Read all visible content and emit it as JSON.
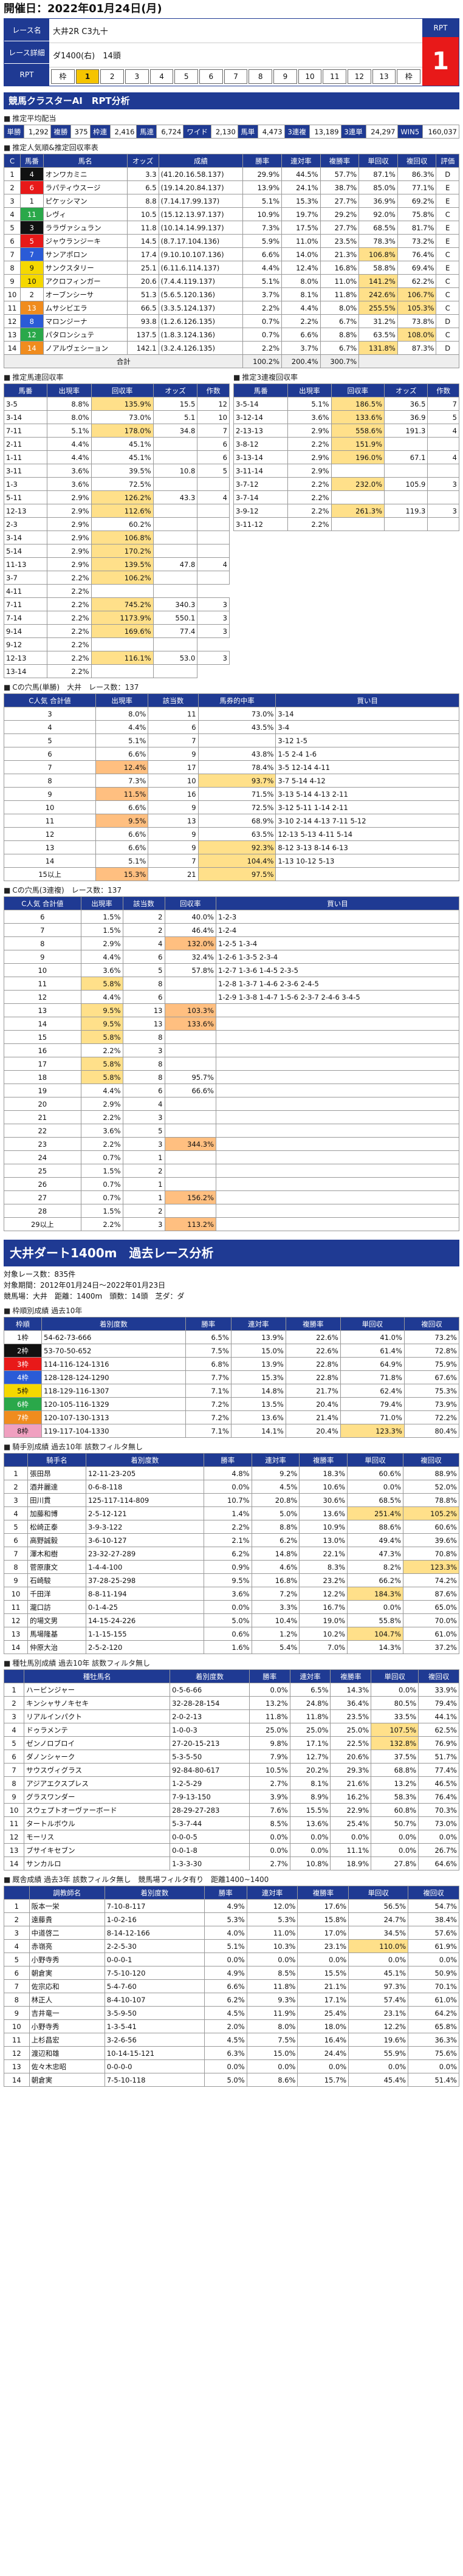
{
  "header": {
    "date": "開催日：2022年01月24日(月)"
  },
  "race": {
    "label_name": "レース名",
    "label_detail": "レース詳細",
    "label_rpt": "RPT",
    "name": "大井2R C3九十",
    "detail": "ダ1400(右)　14頭",
    "rpt_label": "RPT",
    "rpt_value": "1",
    "frames": [
      "枠",
      "1",
      "2",
      "3",
      "4",
      "5",
      "6",
      "7",
      "8",
      "9",
      "10",
      "11",
      "12",
      "13",
      "枠"
    ]
  },
  "rpt": {
    "title": "競馬クラスターAI　RPT分析",
    "sub": "推定平均配当",
    "cells": [
      {
        "k": "単勝",
        "v": "1,292"
      },
      {
        "k": "複勝",
        "v": "375"
      },
      {
        "k": "枠連",
        "v": "2,416"
      },
      {
        "k": "馬連",
        "v": "6,724"
      },
      {
        "k": "ワイド",
        "v": "2,130"
      },
      {
        "k": "馬単",
        "v": "4,473"
      },
      {
        "k": "3連複",
        "v": "13,189"
      },
      {
        "k": "3連単",
        "v": "24,297"
      },
      {
        "k": "WIN5",
        "v": "160,037"
      }
    ]
  },
  "recommend": {
    "sub": "推定人気順&推定回収率表",
    "headers": [
      "C",
      "馬番",
      "馬名",
      "オッズ",
      "成績",
      "勝率",
      "連対率",
      "複勝率",
      "単回収",
      "複回収",
      "評価"
    ],
    "rows": [
      [
        "1",
        "4",
        "オンワカミニ",
        "3.3",
        "(41.20.16.58.137)",
        "29.9%",
        "44.5%",
        "57.7%",
        "87.1%",
        "86.3%",
        "D"
      ],
      [
        "2",
        "6",
        "ラパティウスージ",
        "6.5",
        "(19.14.20.84.137)",
        "13.9%",
        "24.1%",
        "38.7%",
        "85.0%",
        "77.1%",
        "E"
      ],
      [
        "3",
        "1",
        "ピケッシマン",
        "8.8",
        "(7.14.17.99.137)",
        "5.1%",
        "15.3%",
        "27.7%",
        "36.9%",
        "69.2%",
        "E"
      ],
      [
        "4",
        "11",
        "レヴィ",
        "10.5",
        "(15.12.13.97.137)",
        "10.9%",
        "19.7%",
        "29.2%",
        "92.0%",
        "75.8%",
        "C"
      ],
      [
        "5",
        "3",
        "ララヴァシュラン",
        "11.8",
        "(10.14.14.99.137)",
        "7.3%",
        "17.5%",
        "27.7%",
        "68.5%",
        "81.7%",
        "E"
      ],
      [
        "6",
        "5",
        "ジャウランジーキ",
        "14.5",
        "(8.7.17.104.136)",
        "5.9%",
        "11.0%",
        "23.5%",
        "78.3%",
        "73.2%",
        "E"
      ],
      [
        "7",
        "7",
        "サンアポロン",
        "17.4",
        "(9.10.10.107.136)",
        "6.6%",
        "14.0%",
        "21.3%",
        "106.8%",
        "76.4%",
        "C"
      ],
      [
        "8",
        "9",
        "サンクスタリー",
        "25.1",
        "(6.11.6.114.137)",
        "4.4%",
        "12.4%",
        "16.8%",
        "58.8%",
        "69.4%",
        "E"
      ],
      [
        "9",
        "10",
        "アクロフィンガー",
        "20.6",
        "(7.4.4.119.137)",
        "5.1%",
        "8.0%",
        "11.0%",
        "141.2%",
        "62.2%",
        "C"
      ],
      [
        "10",
        "2",
        "オーブンシーサ",
        "51.3",
        "(5.6.5.120.136)",
        "3.7%",
        "8.1%",
        "11.8%",
        "242.6%",
        "106.7%",
        "C"
      ],
      [
        "11",
        "13",
        "ムサシビエラ",
        "66.5",
        "(3.3.5.124.137)",
        "2.2%",
        "4.4%",
        "8.0%",
        "255.5%",
        "105.3%",
        "C"
      ],
      [
        "12",
        "8",
        "マロンジーナ",
        "93.8",
        "(1.2.6.126.135)",
        "0.7%",
        "2.2%",
        "6.7%",
        "31.2%",
        "73.8%",
        "D"
      ],
      [
        "13",
        "12",
        "パタロンシュテ",
        "137.5",
        "(1.8.3.124.136)",
        "0.7%",
        "6.6%",
        "8.8%",
        "63.5%",
        "108.0%",
        "C"
      ],
      [
        "14",
        "14",
        "ノアルヴェシーョン",
        "142.1",
        "(3.2.4.126.135)",
        "2.2%",
        "3.7%",
        "6.7%",
        "131.8%",
        "87.3%",
        "D"
      ]
    ],
    "total": [
      "合計",
      "100.2%",
      "200.4%",
      "300.7%"
    ]
  },
  "umaren": {
    "sub": "推定馬連回収率",
    "headers": [
      "馬番",
      "出現率",
      "回収率",
      "オッズ",
      "作数"
    ],
    "rows": [
      [
        "3-5",
        "8.8%",
        "135.9%",
        "15.5",
        "12"
      ],
      [
        "3-14",
        "8.0%",
        "73.0%",
        "5.1",
        "10"
      ],
      [
        "7-11",
        "5.1%",
        "178.0%",
        "34.8",
        "7"
      ],
      [
        "2-11",
        "4.4%",
        "45.1%",
        "",
        "6"
      ],
      [
        "1-11",
        "4.4%",
        "45.1%",
        "",
        "6"
      ],
      [
        "3-11",
        "3.6%",
        "39.5%",
        "10.8",
        "5"
      ],
      [
        "1-3",
        "3.6%",
        "72.5%",
        "",
        ""
      ],
      [
        "5-11",
        "2.9%",
        "126.2%",
        "43.3",
        "4"
      ],
      [
        "12-13",
        "2.9%",
        "112.6%",
        "",
        ""
      ],
      [
        "2-3",
        "2.9%",
        "60.2%",
        "",
        ""
      ],
      [
        "3-14",
        "2.9%",
        "106.8%",
        "",
        ""
      ],
      [
        "5-14",
        "2.9%",
        "170.2%",
        "",
        ""
      ],
      [
        "11-13",
        "2.9%",
        "139.5%",
        "47.8",
        "4"
      ],
      [
        "3-7",
        "2.2%",
        "106.2%",
        "",
        ""
      ],
      [
        "4-11",
        "2.2%",
        "",
        ""
      ],
      [
        "7-11",
        "2.2%",
        "745.2%",
        "340.3",
        "3"
      ],
      [
        "7-14",
        "2.2%",
        "1173.9%",
        "550.1",
        "3"
      ],
      [
        "9-14",
        "2.2%",
        "169.6%",
        "77.4",
        "3"
      ],
      [
        "9-12",
        "2.2%",
        "",
        ""
      ],
      [
        "12-13",
        "2.2%",
        "116.1%",
        "53.0",
        "3"
      ],
      [
        "13-14",
        "2.2%",
        "",
        ""
      ]
    ]
  },
  "umatan": {
    "sub": "推定3連複回収率",
    "headers": [
      "馬番",
      "出現率",
      "回収率",
      "オッズ",
      "作数"
    ],
    "rows": [
      [
        "3-5-14",
        "5.1%",
        "186.5%",
        "36.5",
        "7"
      ],
      [
        "3-12-14",
        "3.6%",
        "133.6%",
        "36.9",
        "5"
      ],
      [
        "2-13-13",
        "2.9%",
        "558.6%",
        "191.3",
        "4"
      ],
      [
        "3-8-12",
        "2.2%",
        "151.9%",
        "",
        ""
      ],
      [
        "3-13-14",
        "2.9%",
        "196.0%",
        "67.1",
        "4"
      ],
      [
        "3-11-14",
        "2.9%",
        "",
        "",
        ""
      ],
      [
        "3-7-12",
        "2.2%",
        "232.0%",
        "105.9",
        "3"
      ],
      [
        "3-7-14",
        "2.2%",
        "",
        "",
        ""
      ],
      [
        "3-9-12",
        "2.2%",
        "261.3%",
        "119.3",
        "3"
      ],
      [
        "3-11-12",
        "2.2%",
        "",
        "",
        ""
      ]
    ]
  },
  "bakusha": {
    "sub": "Cの穴馬(単勝)　大井　レース数：137",
    "headers": [
      "C人気 合計値",
      "出現率",
      "該当数",
      "馬券的中率",
      "買い目"
    ],
    "rows": [
      [
        "3",
        "8.0%",
        "11",
        "73.0%",
        "3-14"
      ],
      [
        "4",
        "4.4%",
        "6",
        "43.5%",
        "3-4"
      ],
      [
        "5",
        "5.1%",
        "7",
        "",
        "3-12 1-5"
      ],
      [
        "6",
        "6.6%",
        "9",
        "43.8%",
        "1-5 2-4 1-6"
      ],
      [
        "7",
        "12.4%",
        "17",
        "78.4%",
        "3-5 12-14 4-11"
      ],
      [
        "8",
        "7.3%",
        "10",
        "93.7%",
        "3-7 5-14 4-12"
      ],
      [
        "9",
        "11.5%",
        "16",
        "71.5%",
        "3-13 5-14 4-13 2-11"
      ],
      [
        "10",
        "6.6%",
        "9",
        "72.5%",
        "3-12 5-11 1-14 2-11"
      ],
      [
        "11",
        "9.5%",
        "13",
        "68.9%",
        "3-10 2-14 4-13 7-11 5-12"
      ],
      [
        "12",
        "6.6%",
        "9",
        "63.5%",
        "12-13 5-13 4-11 5-14"
      ],
      [
        "13",
        "6.6%",
        "9",
        "92.3%",
        "8-12 3-13 8-14 6-13"
      ],
      [
        "14",
        "5.1%",
        "7",
        "104.4%",
        "1-13 10-12 5-13"
      ],
      [
        "15以上",
        "15.3%",
        "21",
        "97.5%",
        ""
      ]
    ]
  },
  "sanrenpuku": {
    "sub": "Cの穴馬(3連複)　レース数：137",
    "headers": [
      "C人気 合計値",
      "出現率",
      "該当数",
      "回収率",
      "買い目"
    ],
    "rows": [
      [
        "6",
        "1.5%",
        "2",
        "40.0%",
        "1-2-3"
      ],
      [
        "7",
        "1.5%",
        "2",
        "46.4%",
        "1-2-4"
      ],
      [
        "8",
        "2.9%",
        "4",
        "132.0%",
        "1-2-5 1-3-4"
      ],
      [
        "9",
        "4.4%",
        "6",
        "32.4%",
        "1-2-6 1-3-5 2-3-4"
      ],
      [
        "10",
        "3.6%",
        "5",
        "57.8%",
        "1-2-7 1-3-6 1-4-5 2-3-5"
      ],
      [
        "11",
        "5.8%",
        "8",
        "",
        "1-2-8 1-3-7 1-4-6 2-3-6 2-4-5"
      ],
      [
        "12",
        "4.4%",
        "6",
        "",
        "1-2-9 1-3-8 1-4-7 1-5-6 2-3-7 2-4-6 3-4-5"
      ],
      [
        "13",
        "9.5%",
        "13",
        "103.3%",
        ""
      ],
      [
        "14",
        "9.5%",
        "13",
        "133.6%",
        ""
      ],
      [
        "15",
        "5.8%",
        "8",
        "",
        ""
      ],
      [
        "16",
        "2.2%",
        "3",
        "",
        ""
      ],
      [
        "17",
        "5.8%",
        "8",
        "",
        ""
      ],
      [
        "18",
        "5.8%",
        "8",
        "95.7%",
        ""
      ],
      [
        "19",
        "4.4%",
        "6",
        "66.6%",
        ""
      ],
      [
        "20",
        "2.9%",
        "4",
        "",
        ""
      ],
      [
        "21",
        "2.2%",
        "3",
        "",
        ""
      ],
      [
        "22",
        "3.6%",
        "5",
        "",
        ""
      ],
      [
        "23",
        "2.2%",
        "3",
        "344.3%",
        ""
      ],
      [
        "24",
        "0.7%",
        "1",
        "",
        ""
      ],
      [
        "25",
        "1.5%",
        "2",
        "",
        ""
      ],
      [
        "26",
        "0.7%",
        "1",
        "",
        ""
      ],
      [
        "27",
        "0.7%",
        "1",
        "156.2%",
        ""
      ],
      [
        "28",
        "1.5%",
        "2",
        "",
        ""
      ],
      [
        "29以上",
        "2.2%",
        "3",
        "113.2%",
        ""
      ]
    ]
  },
  "course": {
    "title": "大井ダート1400m　過去レース分析",
    "meta1": "対象レース数：835件",
    "meta2": "対象期間：2012年01月24日～2022年01月23日",
    "meta3": "競馬場：大井　距離：1400m　頭数：14頭　芝ダ：ダ"
  },
  "waku": {
    "sub": "枠順別成績 過去10年",
    "headers": [
      "枠順",
      "着別度数",
      "勝率",
      "連対率",
      "複勝率",
      "単回収",
      "複回収"
    ],
    "rows": [
      [
        "1枠",
        "54-62-73-666",
        "6.5%",
        "13.9%",
        "22.6%",
        "41.0%",
        "73.2%"
      ],
      [
        "2枠",
        "53-70-50-652",
        "7.5%",
        "15.0%",
        "22.6%",
        "61.4%",
        "72.8%"
      ],
      [
        "3枠",
        "114-116-124-1316",
        "6.8%",
        "13.9%",
        "22.8%",
        "64.9%",
        "75.9%"
      ],
      [
        "4枠",
        "128-128-124-1290",
        "7.7%",
        "15.3%",
        "22.8%",
        "71.8%",
        "67.6%"
      ],
      [
        "5枠",
        "118-129-116-1307",
        "7.1%",
        "14.8%",
        "21.7%",
        "62.4%",
        "75.3%"
      ],
      [
        "6枠",
        "120-105-116-1329",
        "7.2%",
        "13.5%",
        "20.4%",
        "79.4%",
        "73.9%"
      ],
      [
        "7枠",
        "120-107-130-1313",
        "7.2%",
        "13.6%",
        "21.4%",
        "71.0%",
        "72.2%"
      ],
      [
        "8枠",
        "119-117-104-1330",
        "7.1%",
        "14.1%",
        "20.4%",
        "123.3%",
        "80.4%"
      ]
    ]
  },
  "jockey": {
    "sub": "騎手別成績 過去10年 該数フィルタ無し",
    "headers": [
      "",
      "騎手名",
      "着別度数",
      "勝率",
      "連対率",
      "複勝率",
      "単回収",
      "複回収"
    ],
    "rows": [
      [
        "1",
        "張田昂",
        "12-11-23-205",
        "4.8%",
        "9.2%",
        "18.3%",
        "60.6%",
        "88.9%"
      ],
      [
        "2",
        "酒井麗達",
        "0-6-8-118",
        "0.0%",
        "4.5%",
        "10.6%",
        "0.0%",
        "52.0%"
      ],
      [
        "3",
        "田川貫",
        "125-117-114-809",
        "10.7%",
        "20.8%",
        "30.6%",
        "68.5%",
        "78.8%"
      ],
      [
        "4",
        "加藤和博",
        "2-5-12-121",
        "1.4%",
        "5.0%",
        "13.6%",
        "251.4%",
        "105.2%"
      ],
      [
        "5",
        "松崎正泰",
        "3-9-3-122",
        "2.2%",
        "8.8%",
        "10.9%",
        "88.6%",
        "60.6%"
      ],
      [
        "6",
        "高野誠毅",
        "3-6-10-127",
        "2.1%",
        "6.2%",
        "13.0%",
        "49.4%",
        "39.6%"
      ],
      [
        "7",
        "澤木和樹",
        "23-32-27-289",
        "6.2%",
        "14.8%",
        "22.1%",
        "47.3%",
        "70.8%"
      ],
      [
        "8",
        "菅原康文",
        "1-4-4-100",
        "0.9%",
        "4.6%",
        "8.3%",
        "8.2%",
        "123.3%"
      ],
      [
        "9",
        "石崎駿",
        "37-28-25-298",
        "9.5%",
        "16.8%",
        "23.2%",
        "66.2%",
        "74.2%"
      ],
      [
        "10",
        "千田洋",
        "8-8-11-194",
        "3.6%",
        "7.2%",
        "12.2%",
        "184.3%",
        "87.6%"
      ],
      [
        "11",
        "瀧口訪",
        "0-1-4-25",
        "0.0%",
        "3.3%",
        "16.7%",
        "0.0%",
        "65.0%"
      ],
      [
        "12",
        "的場文男",
        "14-15-24-226",
        "5.0%",
        "10.4%",
        "19.0%",
        "55.8%",
        "70.0%"
      ],
      [
        "13",
        "馬場隆基",
        "1-1-15-155",
        "0.6%",
        "1.2%",
        "10.2%",
        "104.7%",
        "61.0%"
      ],
      [
        "14",
        "仲原大治",
        "2-5-2-120",
        "1.6%",
        "5.4%",
        "7.0%",
        "14.3%",
        "37.2%"
      ]
    ]
  },
  "sire": {
    "sub": "種牡馬別成績 過去10年 該数フィルタ無し",
    "headers": [
      "",
      "種牡馬名",
      "着別度数",
      "勝率",
      "連対率",
      "複勝率",
      "単回収",
      "複回収"
    ],
    "rows": [
      [
        "1",
        "ハービンジャー",
        "0-5-6-66",
        "0.0%",
        "6.5%",
        "14.3%",
        "0.0%",
        "33.9%"
      ],
      [
        "2",
        "キンシャサノキセキ",
        "32-28-28-154",
        "13.2%",
        "24.8%",
        "36.4%",
        "80.5%",
        "79.4%"
      ],
      [
        "3",
        "リアルインパクト",
        "2-0-2-13",
        "11.8%",
        "11.8%",
        "23.5%",
        "33.5%",
        "44.1%"
      ],
      [
        "4",
        "ドゥラメンテ",
        "1-0-0-3",
        "25.0%",
        "25.0%",
        "25.0%",
        "107.5%",
        "62.5%"
      ],
      [
        "5",
        "ゼンノロブロイ",
        "27-20-15-213",
        "9.8%",
        "17.1%",
        "22.5%",
        "132.8%",
        "76.9%"
      ],
      [
        "6",
        "ダノンシャーク",
        "5-3-5-50",
        "7.9%",
        "12.7%",
        "20.6%",
        "37.5%",
        "51.7%"
      ],
      [
        "7",
        "サウスヴィグラス",
        "92-84-80-617",
        "10.5%",
        "20.2%",
        "29.3%",
        "68.8%",
        "77.4%"
      ],
      [
        "8",
        "アジアエクスプレス",
        "1-2-5-29",
        "2.7%",
        "8.1%",
        "21.6%",
        "13.2%",
        "46.5%"
      ],
      [
        "9",
        "グラスワンダー",
        "7-9-13-150",
        "3.9%",
        "8.9%",
        "16.2%",
        "58.3%",
        "76.4%"
      ],
      [
        "10",
        "スウェプトオーヴァーボード",
        "28-29-27-283",
        "7.6%",
        "15.5%",
        "22.9%",
        "60.8%",
        "70.3%"
      ],
      [
        "11",
        "タートルボウル",
        "5-3-7-44",
        "8.5%",
        "13.6%",
        "25.4%",
        "50.7%",
        "73.0%"
      ],
      [
        "12",
        "モーリス",
        "0-0-0-5",
        "0.0%",
        "0.0%",
        "0.0%",
        "0.0%",
        "0.0%"
      ],
      [
        "13",
        "ブサイキセブン",
        "0-0-1-8",
        "0.0%",
        "0.0%",
        "11.1%",
        "0.0%",
        "26.7%"
      ],
      [
        "14",
        "サンカルロ",
        "1-3-3-30",
        "2.7%",
        "10.8%",
        "18.9%",
        "27.8%",
        "64.6%"
      ]
    ]
  },
  "trainer": {
    "sub": "厩舎成績 過去3年 該数フィルタ無し　競馬場フィルタ有り　距離1400~1400",
    "headers": [
      "",
      "調教師名",
      "着別度数",
      "勝率",
      "連対率",
      "複勝率",
      "単回収",
      "複回収"
    ],
    "rows": [
      [
        "1",
        "阪本一栄",
        "7-10-8-117",
        "4.9%",
        "12.0%",
        "17.6%",
        "56.5%",
        "54.7%"
      ],
      [
        "2",
        "遠藤貴",
        "1-0-2-16",
        "5.3%",
        "5.3%",
        "15.8%",
        "24.7%",
        "38.4%"
      ],
      [
        "3",
        "中道啓二",
        "8-14-12-166",
        "4.0%",
        "11.0%",
        "17.0%",
        "34.5%",
        "57.6%"
      ],
      [
        "4",
        "赤嶺亮",
        "2-2-5-30",
        "5.1%",
        "10.3%",
        "23.1%",
        "110.0%",
        "61.9%"
      ],
      [
        "5",
        "小野寺秀",
        "0-0-0-1",
        "0.0%",
        "0.0%",
        "0.0%",
        "0.0%",
        "0.0%"
      ],
      [
        "6",
        "朝倉実",
        "7-5-10-120",
        "4.9%",
        "8.5%",
        "15.5%",
        "45.1%",
        "50.9%"
      ],
      [
        "7",
        "佐宗応和",
        "5-4-7-60",
        "6.6%",
        "11.8%",
        "21.1%",
        "97.3%",
        "70.1%"
      ],
      [
        "8",
        "林正人",
        "8-4-10-107",
        "6.2%",
        "9.3%",
        "17.1%",
        "57.4%",
        "61.0%"
      ],
      [
        "9",
        "吉井竜一",
        "3-5-9-50",
        "4.5%",
        "11.9%",
        "25.4%",
        "23.1%",
        "64.2%"
      ],
      [
        "10",
        "小野寺秀",
        "1-3-5-41",
        "2.0%",
        "8.0%",
        "18.0%",
        "12.2%",
        "65.8%"
      ],
      [
        "11",
        "上杉昌宏",
        "3-2-6-56",
        "4.5%",
        "7.5%",
        "16.4%",
        "19.6%",
        "36.3%"
      ],
      [
        "12",
        "渡辺和雄",
        "10-14-15-121",
        "6.3%",
        "15.0%",
        "24.4%",
        "55.9%",
        "75.6%"
      ],
      [
        "13",
        "佐々木忠昭",
        "0-0-0-0",
        "0.0%",
        "0.0%",
        "0.0%",
        "0.0%",
        "0.0%"
      ],
      [
        "14",
        "朝倉実",
        "7-5-10-118",
        "5.0%",
        "8.6%",
        "15.7%",
        "45.4%",
        "51.4%"
      ]
    ]
  }
}
